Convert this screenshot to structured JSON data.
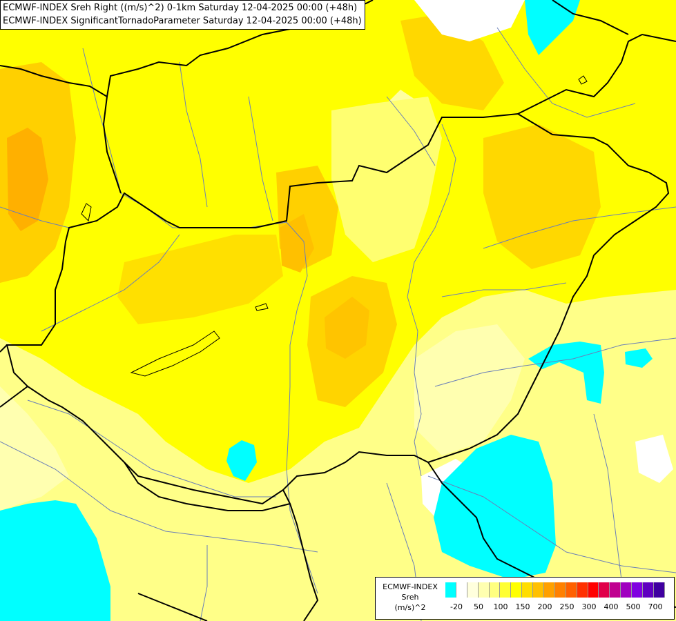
{
  "titles": {
    "line1": "ECMWF-INDEX Sreh Right ((m/s)^2) 0-1km Saturday 12-04-2025 00:00 (+48h)",
    "line2": "ECMWF-INDEX SignificantTornadoParameter Saturday 12-04-2025 00:00 (+48h)"
  },
  "legend": {
    "title_lines": [
      "ECMWF-INDEX",
      "Sreh",
      "(m/s)^2"
    ],
    "tick_labels": [
      "-20",
      "50",
      "100",
      "150",
      "200",
      "250",
      "300",
      "400",
      "500",
      "700"
    ],
    "colors": [
      "#00ffff",
      "#ffffff",
      "#ffffdd",
      "#ffffb0",
      "#ffff80",
      "#ffff33",
      "#ffff00",
      "#ffdd00",
      "#ffc000",
      "#ffa000",
      "#ff8000",
      "#ff6000",
      "#ff3000",
      "#ff0000",
      "#e0004a",
      "#c00090",
      "#a000c0",
      "#8000e0",
      "#6000c0",
      "#4000a0"
    ]
  }
}
